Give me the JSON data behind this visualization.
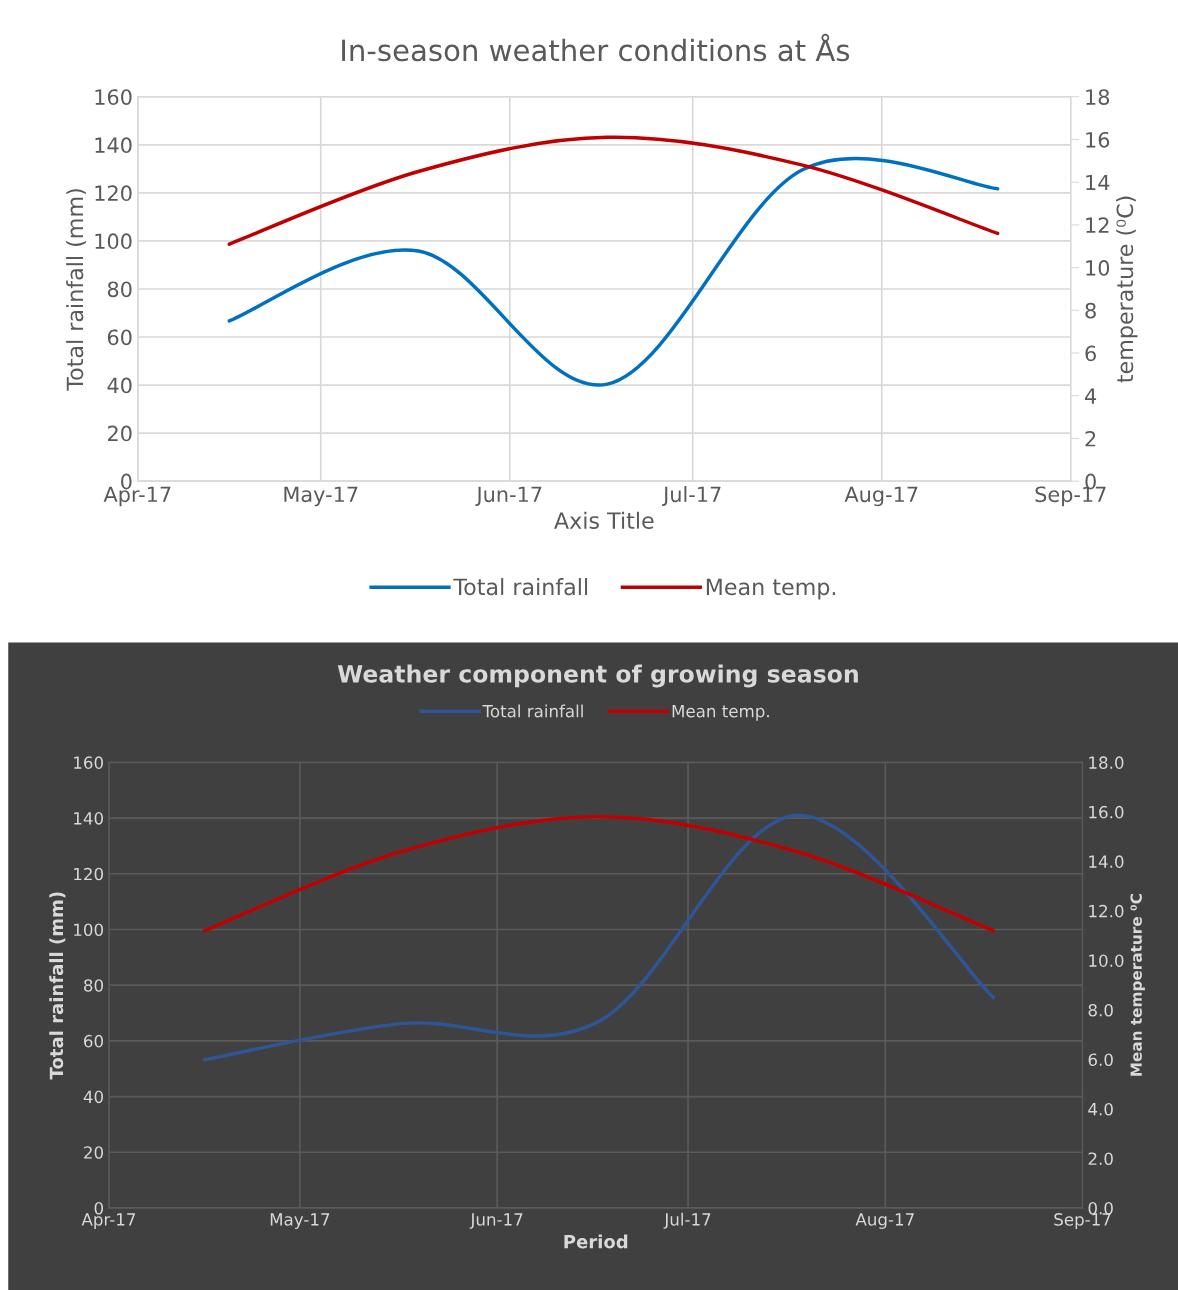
{
  "chart_data": [
    {
      "type": "line",
      "title": "In-season weather conditions at Ås",
      "xlabel": "Axis Title",
      "ylabel": "Total rainfall (mm)",
      "y2label": "temperature (⁰C)",
      "x": [
        "2017-04-16",
        "2017-05-17",
        "2017-06-17",
        "2017-07-19",
        "2017-08-20"
      ],
      "series": [
        {
          "name": "Total rainfall",
          "color": "#0070c0",
          "values": [
            66.7,
            95.8,
            40.4,
            129.6,
            121.7
          ]
        },
        {
          "name": "Mean temp.",
          "color": "#c00000",
          "axis": "y2",
          "values": [
            11.1,
            14.5,
            16.1,
            14.8,
            11.6
          ]
        }
      ],
      "xlim": [
        "2017-04-01",
        "2017-09-01"
      ],
      "xticks": [
        {
          "value": "2017-04-01",
          "label": "Apr-17"
        },
        {
          "value": "2017-05-01",
          "label": "May-17"
        },
        {
          "value": "2017-06-01",
          "label": "Jun-17"
        },
        {
          "value": "2017-07-01",
          "label": "Jul-17"
        },
        {
          "value": "2017-08-01",
          "label": "Aug-17"
        },
        {
          "value": "2017-09-01",
          "label": "Sep-17"
        }
      ],
      "ylim": [
        0,
        160
      ],
      "yticks": [
        0,
        20,
        40,
        60,
        80,
        100,
        120,
        140,
        160
      ],
      "y2lim": [
        0,
        18
      ],
      "y2ticks": [
        0,
        2,
        4,
        6,
        8,
        10,
        12,
        14,
        16,
        18
      ],
      "grid": true,
      "legend": "bottom",
      "marker": "none",
      "line_style": "solid"
    },
    {
      "type": "line",
      "title": "Weather component of growing season",
      "xlabel": "Period",
      "ylabel": "Total rainfall (mm)",
      "y2label": "Mean temperature ⁰C",
      "x": [
        "2017-04-16",
        "2017-05-17",
        "2017-06-17",
        "2017-07-18",
        "2017-08-18"
      ],
      "series": [
        {
          "name": "Total rainfall",
          "color": "#2f5597",
          "values": [
            53.2,
            66.2,
            67.0,
            141.0,
            75.5
          ]
        },
        {
          "name": "Mean temp.",
          "color": "#c00000",
          "axis": "y2",
          "values": [
            11.2,
            14.4,
            15.8,
            14.4,
            11.2
          ]
        }
      ],
      "xlim": [
        "2017-04-01",
        "2017-09-01"
      ],
      "xticks": [
        {
          "value": "2017-04-01",
          "label": "Apr-17"
        },
        {
          "value": "2017-05-01",
          "label": "May-17"
        },
        {
          "value": "2017-06-01",
          "label": "Jun-17"
        },
        {
          "value": "2017-07-01",
          "label": "Jul-17"
        },
        {
          "value": "2017-08-01",
          "label": "Aug-17"
        },
        {
          "value": "2017-09-01",
          "label": "Sep-17"
        }
      ],
      "ylim": [
        0,
        160
      ],
      "yticks": [
        0,
        20,
        40,
        60,
        80,
        100,
        120,
        140,
        160
      ],
      "y2lim": [
        0,
        18
      ],
      "y2ticks": [
        {
          "value": 0,
          "label": "0.0"
        },
        {
          "value": 2,
          "label": "2.0"
        },
        {
          "value": 4,
          "label": "4.0"
        },
        {
          "value": 6,
          "label": "6.0"
        },
        {
          "value": 8,
          "label": "8.0"
        },
        {
          "value": 10,
          "label": "10.0"
        },
        {
          "value": 12,
          "label": "12.0"
        },
        {
          "value": 14,
          "label": "14.0"
        },
        {
          "value": 16,
          "label": "16.0"
        },
        {
          "value": 18,
          "label": "18.0"
        }
      ],
      "grid": true,
      "legend": "top",
      "marker": "none",
      "line_style": "solid"
    }
  ]
}
